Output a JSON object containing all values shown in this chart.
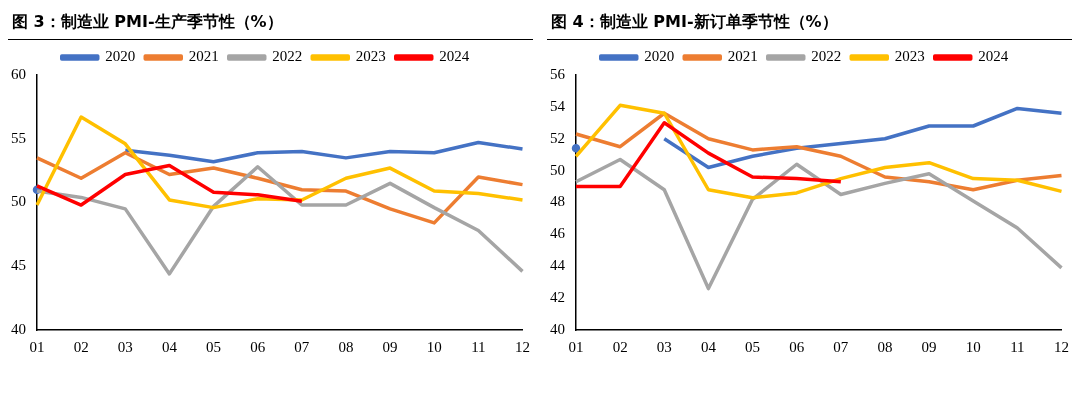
{
  "chart_data": [
    {
      "type": "line",
      "title": "图 3：制造业 PMI-生产季节性（%）",
      "categories": [
        "01",
        "02",
        "03",
        "04",
        "05",
        "06",
        "07",
        "08",
        "09",
        "10",
        "11",
        "12"
      ],
      "ylim": [
        40,
        60
      ],
      "yticks": [
        40,
        45,
        50,
        55,
        60
      ],
      "grid": false,
      "legend": "top",
      "marker": "none",
      "line_style": "solid",
      "series": [
        {
          "name": "2020",
          "color": "#4472c4",
          "values": [
            51.0,
            null,
            54.1,
            53.7,
            53.2,
            53.9,
            54.0,
            53.5,
            54.0,
            53.9,
            54.7,
            54.2
          ]
        },
        {
          "name": "2021",
          "color": "#ed7d31",
          "values": [
            53.5,
            51.9,
            53.9,
            52.2,
            52.7,
            51.9,
            51.0,
            50.9,
            49.5,
            48.4,
            52.0,
            51.4
          ]
        },
        {
          "name": "2022",
          "color": "#a5a5a5",
          "values": [
            50.9,
            50.4,
            49.5,
            44.4,
            49.7,
            52.8,
            49.8,
            49.8,
            51.5,
            49.6,
            47.8,
            44.6
          ]
        },
        {
          "name": "2023",
          "color": "#ffc000",
          "values": [
            49.8,
            56.7,
            54.6,
            50.2,
            49.6,
            50.3,
            50.2,
            51.9,
            52.7,
            50.9,
            50.7,
            50.2
          ]
        },
        {
          "name": "2024",
          "color": "#ff0000",
          "values": [
            51.3,
            49.8,
            52.2,
            52.9,
            50.8,
            50.6,
            50.1,
            null,
            null,
            null,
            null,
            null
          ]
        }
      ]
    },
    {
      "type": "line",
      "title": "图 4：制造业 PMI-新订单季节性（%）",
      "categories": [
        "01",
        "02",
        "03",
        "04",
        "05",
        "06",
        "07",
        "08",
        "09",
        "10",
        "11",
        "12"
      ],
      "ylim": [
        40,
        56
      ],
      "yticks": [
        40,
        42,
        44,
        46,
        48,
        50,
        52,
        54,
        56
      ],
      "grid": false,
      "legend": "top",
      "marker": "none",
      "line_style": "solid",
      "series": [
        {
          "name": "2020",
          "color": "#4472c4",
          "values": [
            51.4,
            null,
            52.0,
            50.2,
            50.9,
            51.4,
            51.7,
            52.0,
            52.8,
            52.8,
            53.9,
            53.6
          ]
        },
        {
          "name": "2021",
          "color": "#ed7d31",
          "values": [
            52.3,
            51.5,
            53.6,
            52.0,
            51.3,
            51.5,
            50.9,
            49.6,
            49.3,
            48.8,
            49.4,
            49.7
          ]
        },
        {
          "name": "2022",
          "color": "#a5a5a5",
          "values": [
            49.3,
            50.7,
            48.8,
            42.6,
            48.2,
            50.4,
            48.5,
            49.2,
            49.8,
            48.1,
            46.4,
            43.9
          ]
        },
        {
          "name": "2023",
          "color": "#ffc000",
          "values": [
            50.9,
            54.1,
            53.6,
            48.8,
            48.3,
            48.6,
            49.5,
            50.2,
            50.5,
            49.5,
            49.4,
            48.7
          ]
        },
        {
          "name": "2024",
          "color": "#ff0000",
          "values": [
            49.0,
            49.0,
            53.0,
            51.1,
            49.6,
            49.5,
            49.3,
            null,
            null,
            null,
            null,
            null
          ]
        }
      ]
    }
  ]
}
